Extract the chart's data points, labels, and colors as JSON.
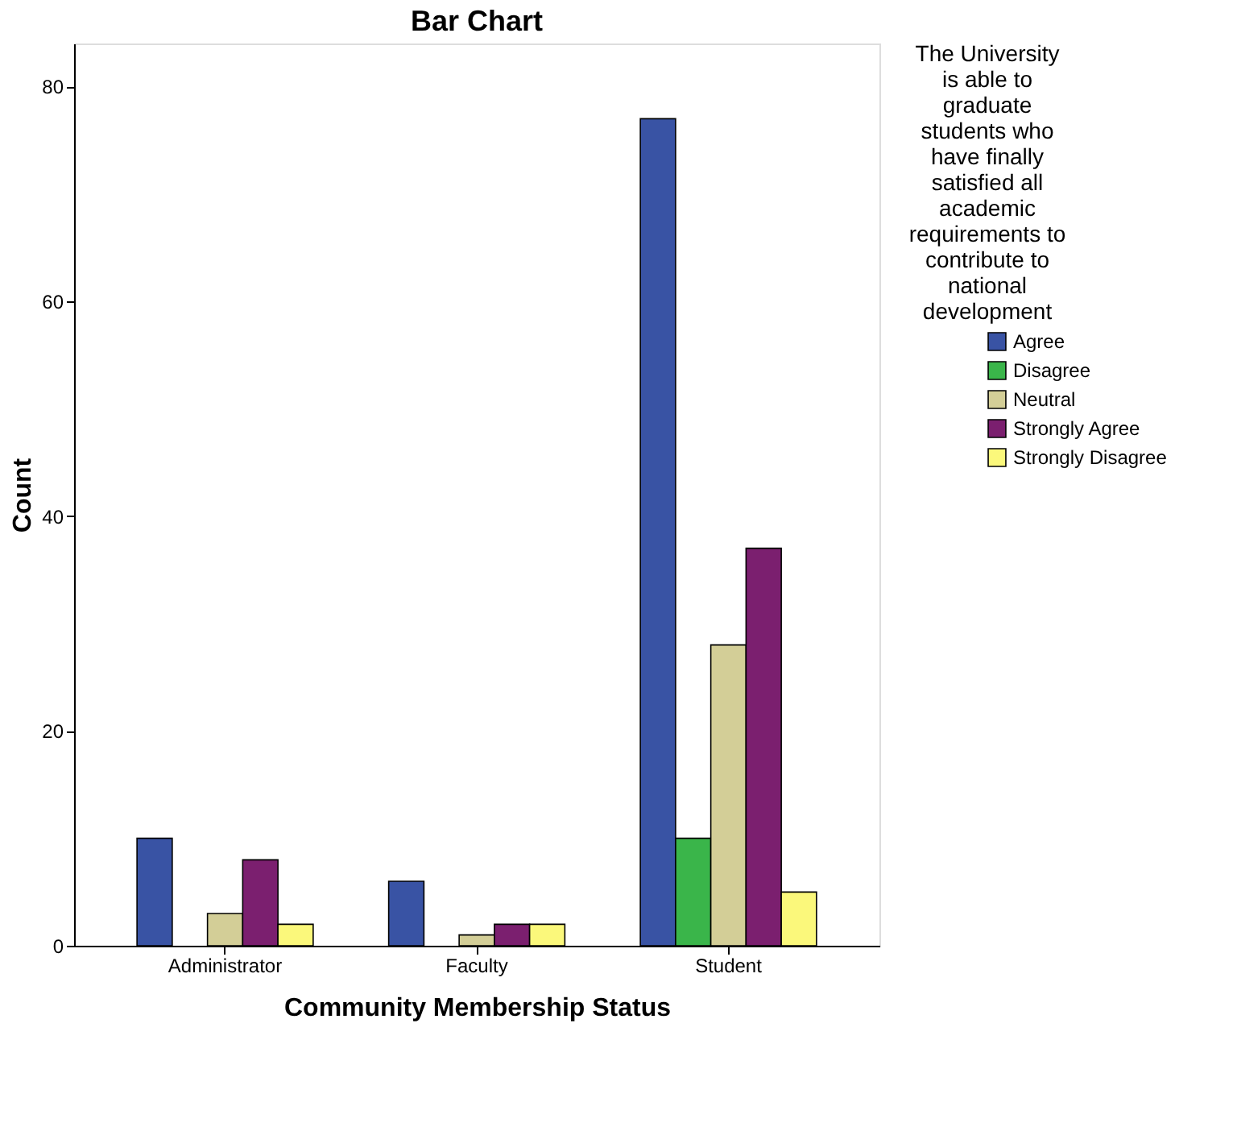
{
  "chart_data": {
    "type": "bar",
    "title": "Bar Chart",
    "xlabel": "Community Membership Status",
    "ylabel": "Count",
    "legend_title": "The University is able to graduate students who have finally satisfied all academic requirements to contribute to national development",
    "categories": [
      "Administrator",
      "Faculty",
      "Student"
    ],
    "series": [
      {
        "name": "Agree",
        "color": "#3953a4",
        "values": [
          10,
          6,
          77
        ]
      },
      {
        "name": "Disagree",
        "color": "#3ab54a",
        "values": [
          null,
          null,
          10
        ]
      },
      {
        "name": "Neutral",
        "color": "#d3ce97",
        "values": [
          3,
          1,
          28
        ]
      },
      {
        "name": "Strongly Agree",
        "color": "#7b1f6f",
        "values": [
          8,
          2,
          37
        ]
      },
      {
        "name": "Strongly Disagree",
        "color": "#fbf87b",
        "values": [
          2,
          2,
          5
        ]
      }
    ],
    "ylim": [
      0,
      84
    ],
    "yticks": [
      0,
      20,
      40,
      60,
      80
    ],
    "grid": false,
    "legend": "right"
  }
}
